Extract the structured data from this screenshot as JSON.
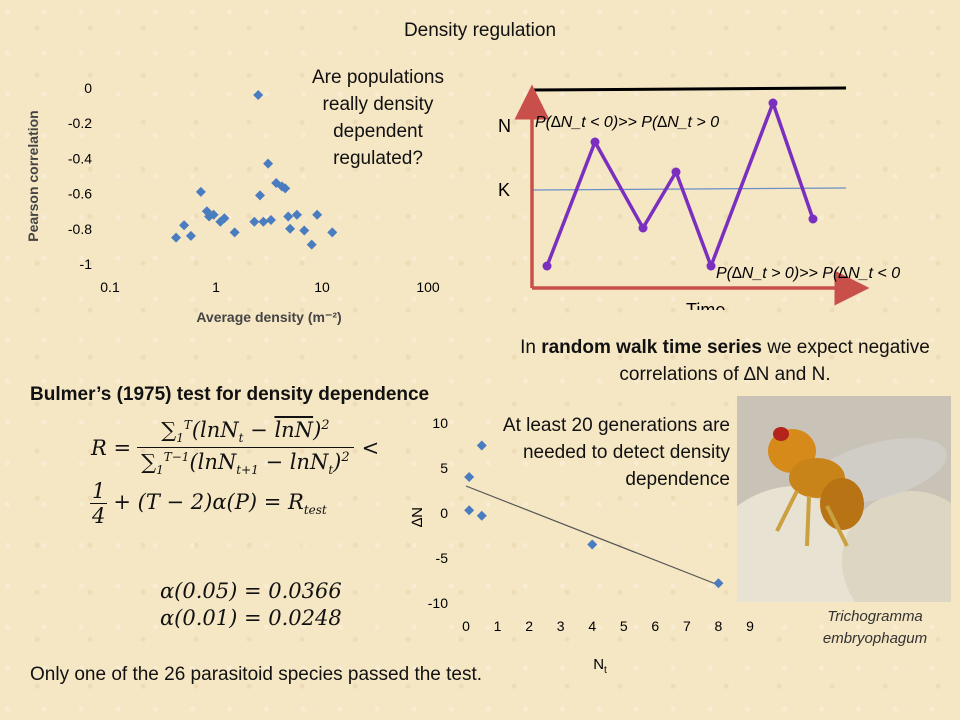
{
  "title": "Density regulation",
  "question": "Are populations really density dependent regulated?",
  "random_walk_caption": {
    "pre": "In ",
    "bold": "random walk time series",
    "post": " we expect negative correlations of ∆N and N."
  },
  "bulmer_heading": "Bulmer’s (1975) test for density dependence",
  "generations_text": "At least 20 generations are needed to detect density dependence",
  "footer": "Only one of the 26 parasitoid species passed the test.",
  "species": "Trichogramma embryophagum",
  "formula": {
    "alpha1": "α(0.05) = 0.0366",
    "alpha2": "α(0.01) = 0.0248"
  },
  "diagram": {
    "n_label": "N",
    "k_label": "K",
    "time_label": "Time",
    "upper_eq": "P(∆N_t < 0)>> P(∆N_t > 0",
    "lower_eq": "P(∆N_t > 0)>> P(∆N_t < 0",
    "line_color": "#7b2fbf",
    "axis_color": "#c9504a",
    "k_color": "#6c8fc7"
  },
  "chart_data": [
    {
      "type": "scatter",
      "xlabel": "Average density (m⁻²)",
      "ylabel": "Pearson correlation",
      "xscale": "log",
      "xlim": [
        0.1,
        100
      ],
      "ylim": [
        -1,
        0
      ],
      "xticks": [
        "0.1",
        "1",
        "10",
        "100"
      ],
      "yticks": [
        "0",
        "-0.2",
        "-0.4",
        "-0.6",
        "-0.8",
        "-1"
      ],
      "color": "#4a7cc0",
      "points": [
        [
          0.42,
          -0.85
        ],
        [
          0.5,
          -0.78
        ],
        [
          0.58,
          -0.84
        ],
        [
          0.72,
          -0.59
        ],
        [
          0.82,
          -0.7
        ],
        [
          0.86,
          -0.73
        ],
        [
          0.95,
          -0.72
        ],
        [
          1.1,
          -0.76
        ],
        [
          1.2,
          -0.74
        ],
        [
          1.5,
          -0.82
        ],
        [
          2.3,
          -0.76
        ],
        [
          2.5,
          -0.04
        ],
        [
          2.6,
          -0.61
        ],
        [
          2.8,
          -0.76
        ],
        [
          3.1,
          -0.43
        ],
        [
          3.3,
          -0.75
        ],
        [
          3.7,
          -0.54
        ],
        [
          4.2,
          -0.56
        ],
        [
          4.5,
          -0.57
        ],
        [
          4.8,
          -0.73
        ],
        [
          5.0,
          -0.8
        ],
        [
          5.8,
          -0.72
        ],
        [
          6.8,
          -0.81
        ],
        [
          8.0,
          -0.89
        ],
        [
          9.0,
          -0.72
        ],
        [
          12.5,
          -0.82
        ]
      ]
    },
    {
      "type": "scatter",
      "xlabel": "N_t",
      "ylabel": "∆N",
      "xlim": [
        0,
        9
      ],
      "ylim": [
        -10,
        10
      ],
      "xticks": [
        "0",
        "1",
        "2",
        "3",
        "4",
        "5",
        "6",
        "7",
        "8",
        "9"
      ],
      "yticks": [
        "10",
        "5",
        "0",
        "-5",
        "-10"
      ],
      "color": "#4a7cc0",
      "points": [
        [
          0.1,
          4
        ],
        [
          0.1,
          0.3
        ],
        [
          0.5,
          7.5
        ],
        [
          0.5,
          -0.3
        ],
        [
          4,
          -3.5
        ],
        [
          8,
          -7.8
        ]
      ],
      "trendline": [
        [
          0,
          3
        ],
        [
          8,
          -8
        ]
      ]
    }
  ]
}
